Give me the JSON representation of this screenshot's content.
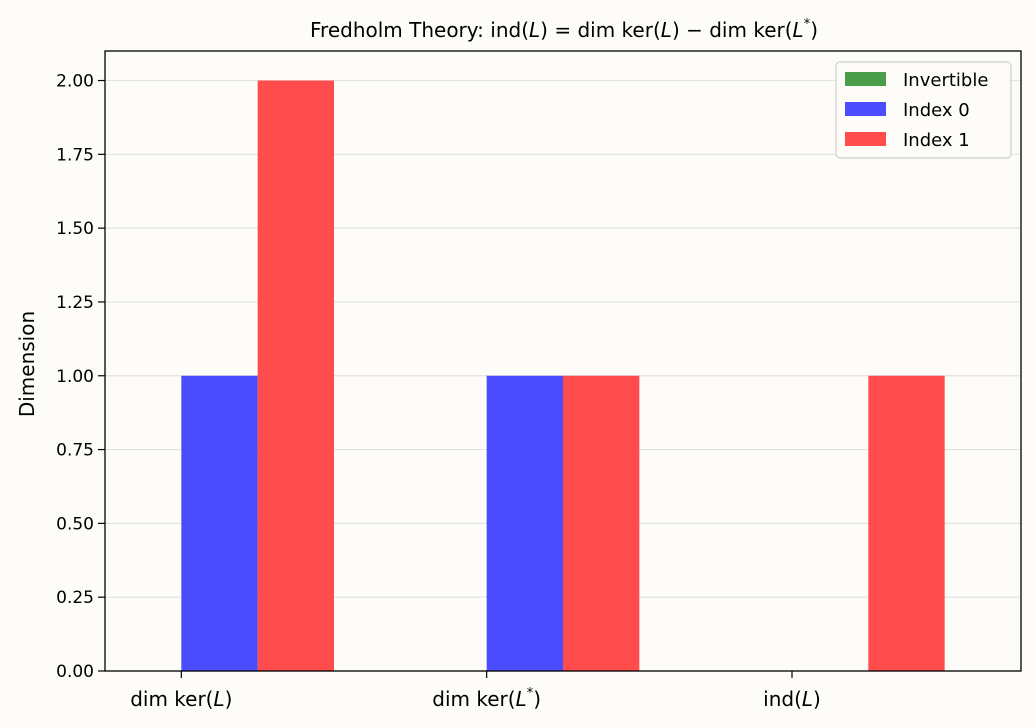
{
  "chart_data": {
    "type": "bar",
    "title": "Fredholm Theory: ind(L) = dim ker(L) − dim ker(L*)",
    "title_parts": {
      "prefix": "Fredholm Theory: ",
      "ind": "ind",
      "L": "L",
      "eq": " = ",
      "dimker": "dim ker",
      "minus": " − ",
      "star": "*"
    },
    "xlabel": "",
    "ylabel": "Dimension",
    "ylim": [
      0,
      2.1
    ],
    "yticks": [
      0.0,
      0.25,
      0.5,
      0.75,
      1.0,
      1.25,
      1.5,
      1.75,
      2.0
    ],
    "ytick_labels": [
      "0.00",
      "0.25",
      "0.50",
      "0.75",
      "1.00",
      "1.25",
      "1.50",
      "1.75",
      "2.00"
    ],
    "categories": [
      "dim ker(L)",
      "dim ker(L*)",
      "ind(L)"
    ],
    "category_parts": [
      {
        "fn": "dim ker",
        "arg": "L",
        "star": ""
      },
      {
        "fn": "dim ker",
        "arg": "L",
        "star": "*"
      },
      {
        "fn": "ind",
        "arg": "L",
        "star": ""
      }
    ],
    "series": [
      {
        "name": "Invertible",
        "values": [
          0,
          0,
          0
        ],
        "color": "#4a9e4a"
      },
      {
        "name": "Index 0",
        "values": [
          1,
          1,
          0
        ],
        "color": "#4c4cff"
      },
      {
        "name": "Index 1",
        "values": [
          2,
          1,
          1
        ],
        "color": "#ff4c4c"
      }
    ],
    "grid": "y",
    "legend_position": "top-right"
  }
}
